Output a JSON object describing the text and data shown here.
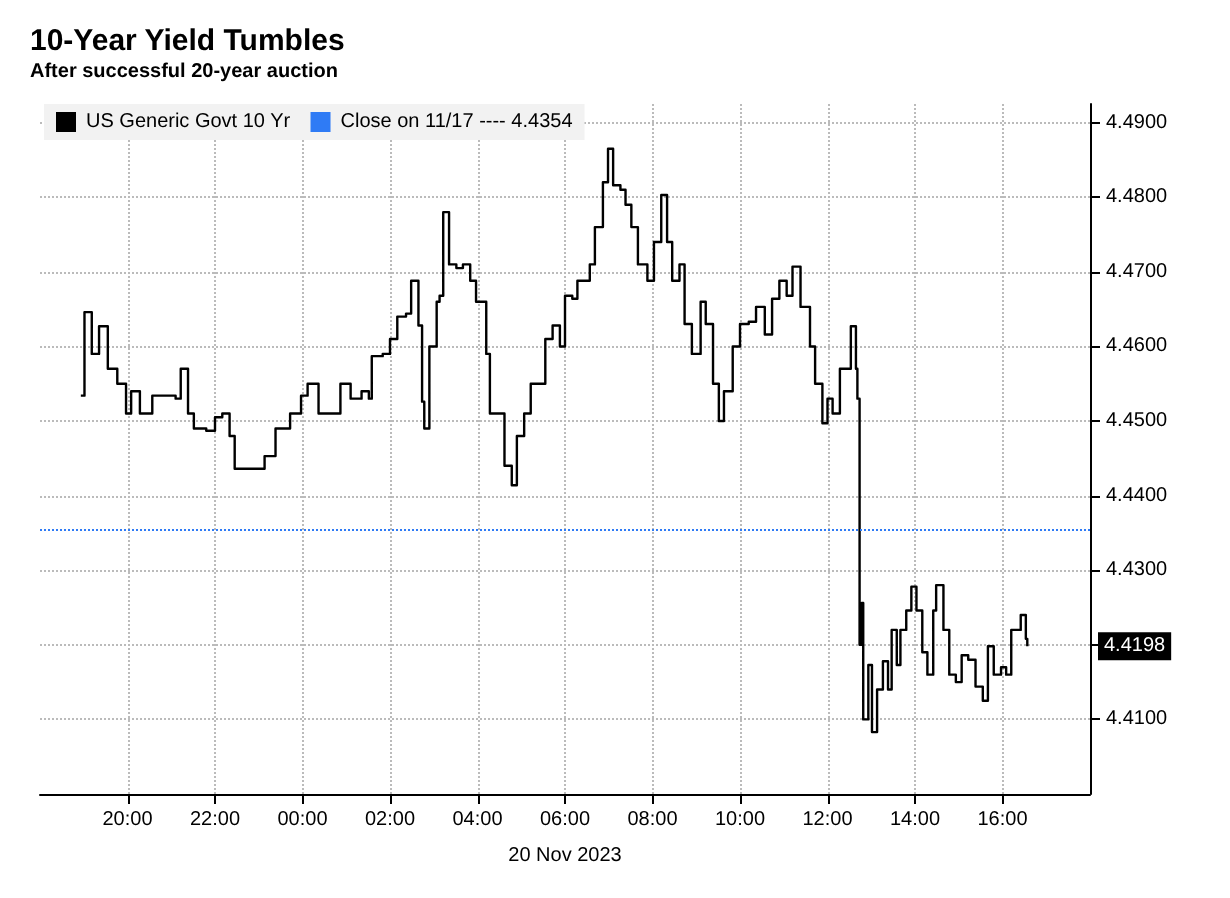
{
  "chart_data": {
    "type": "step",
    "title": "10-Year Yield Tumbles",
    "subtitle": "After successful 20-year auction",
    "xlabel": "20 Nov 2023",
    "x": [
      "2023-11-19T18:56",
      "2023-11-19T19:01",
      "2023-11-19T19:11",
      "2023-11-19T19:21",
      "2023-11-19T19:33",
      "2023-11-19T19:46",
      "2023-11-19T19:58",
      "2023-11-19T20:05",
      "2023-11-19T20:17",
      "2023-11-19T20:34",
      "2023-11-19T21:06",
      "2023-11-19T21:13",
      "2023-11-19T21:23",
      "2023-11-19T21:31",
      "2023-11-19T21:48",
      "2023-11-19T22:00",
      "2023-11-19T22:10",
      "2023-11-19T22:20",
      "2023-11-19T22:27",
      "2023-11-19T22:49",
      "2023-11-19T23:08",
      "2023-11-19T23:23",
      "2023-11-19T23:43",
      "2023-11-19T23:58",
      "2023-11-20T00:07",
      "2023-11-20T00:22",
      "2023-11-20T00:47",
      "2023-11-20T00:52",
      "2023-11-20T01:06",
      "2023-11-20T01:21",
      "2023-11-20T01:31",
      "2023-11-20T01:35",
      "2023-11-20T01:50",
      "2023-11-20T02:00",
      "2023-11-20T02:10",
      "2023-11-20T02:22",
      "2023-11-20T02:29",
      "2023-11-20T02:39",
      "2023-11-20T02:44",
      "2023-11-20T02:47",
      "2023-11-20T02:54",
      "2023-11-20T03:04",
      "2023-11-20T03:08",
      "2023-11-20T03:13",
      "2023-11-20T03:21",
      "2023-11-20T03:31",
      "2023-11-20T03:40",
      "2023-11-20T03:50",
      "2023-11-20T03:58",
      "2023-11-20T04:12",
      "2023-11-20T04:17",
      "2023-11-20T04:27",
      "2023-11-20T04:37",
      "2023-11-20T04:47",
      "2023-11-20T04:54",
      "2023-11-20T05:04",
      "2023-11-20T05:13",
      "2023-11-20T05:23",
      "2023-11-20T05:33",
      "2023-11-20T05:43",
      "2023-11-20T05:53",
      "2023-11-20T06:00",
      "2023-11-20T06:10",
      "2023-11-20T06:17",
      "2023-11-20T06:27",
      "2023-11-20T06:34",
      "2023-11-20T06:41",
      "2023-11-20T06:52",
      "2023-11-20T06:59",
      "2023-11-20T07:06",
      "2023-11-20T07:16",
      "2023-11-20T07:23",
      "2023-11-20T07:31",
      "2023-11-20T07:40",
      "2023-11-20T07:53",
      "2023-11-20T08:02",
      "2023-11-20T08:12",
      "2023-11-20T08:20",
      "2023-11-20T08:27",
      "2023-11-20T08:37",
      "2023-11-20T08:44",
      "2023-11-20T08:54",
      "2023-11-20T09:06",
      "2023-11-20T09:13",
      "2023-11-20T09:23",
      "2023-11-20T09:31",
      "2023-11-20T09:38",
      "2023-11-20T09:50",
      "2023-11-20T10:00",
      "2023-11-20T10:12",
      "2023-11-20T10:22",
      "2023-11-20T10:34",
      "2023-11-20T10:44",
      "2023-11-20T10:54",
      "2023-11-20T11:04",
      "2023-11-20T11:12",
      "2023-11-20T11:23",
      "2023-11-20T11:36",
      "2023-11-20T11:43",
      "2023-11-20T11:53",
      "2023-11-20T12:00",
      "2023-11-20T12:07",
      "2023-11-20T12:17",
      "2023-11-20T12:27",
      "2023-11-20T12:32",
      "2023-11-20T12:39",
      "2023-11-20T12:41",
      "2023-11-20T12:44",
      "2023-11-20T12:47",
      "2023-11-20T12:49",
      "2023-11-20T12:56",
      "2023-11-20T13:01",
      "2023-11-20T13:08",
      "2023-11-20T13:16",
      "2023-11-20T13:23",
      "2023-11-20T13:28",
      "2023-11-20T13:35",
      "2023-11-20T13:40",
      "2023-11-20T13:48",
      "2023-11-20T13:55",
      "2023-11-20T14:02",
      "2023-11-20T14:10",
      "2023-11-20T14:17",
      "2023-11-20T14:25",
      "2023-11-20T14:29",
      "2023-11-20T14:39",
      "2023-11-20T14:47",
      "2023-11-20T14:56",
      "2023-11-20T15:04",
      "2023-11-20T15:13",
      "2023-11-20T15:23",
      "2023-11-20T15:33",
      "2023-11-20T15:40",
      "2023-11-20T15:48",
      "2023-11-20T15:58",
      "2023-11-20T16:05",
      "2023-11-20T16:12",
      "2023-11-20T16:25",
      "2023-11-20T16:32",
      "2023-11-20T16:34"
    ],
    "series": [
      {
        "name": "US Generic Govt 10 Yr",
        "color": "#000000",
        "values": [
          4.4534,
          4.4646,
          4.459,
          4.4627,
          4.457,
          4.455,
          4.451,
          4.454,
          4.451,
          4.4534,
          4.453,
          4.457,
          4.451,
          4.449,
          4.4487,
          4.4505,
          4.451,
          4.448,
          4.4436,
          4.4436,
          4.4453,
          4.449,
          4.451,
          4.4534,
          4.455,
          4.451,
          4.451,
          4.455,
          4.453,
          4.454,
          4.453,
          4.4587,
          4.459,
          4.461,
          4.464,
          4.4644,
          4.4688,
          4.4628,
          4.4526,
          4.449,
          4.46,
          4.466,
          4.4668,
          4.478,
          4.471,
          4.4705,
          4.471,
          4.4688,
          4.466,
          4.459,
          4.451,
          4.451,
          4.444,
          4.4414,
          4.448,
          4.451,
          4.455,
          4.455,
          4.461,
          4.4628,
          4.46,
          4.4668,
          4.4664,
          4.4688,
          4.4688,
          4.471,
          4.476,
          4.482,
          4.4865,
          4.4816,
          4.481,
          4.479,
          4.476,
          4.471,
          4.4688,
          4.474,
          4.4803,
          4.474,
          4.4688,
          4.471,
          4.463,
          4.459,
          4.466,
          4.463,
          4.455,
          4.45,
          4.454,
          4.46,
          4.463,
          4.4633,
          4.4653,
          4.4616,
          4.4664,
          4.4688,
          4.4668,
          4.4707,
          4.4653,
          4.46,
          4.455,
          4.4497,
          4.453,
          4.451,
          4.457,
          4.457,
          4.4627,
          4.457,
          4.453,
          4.42,
          4.4256,
          4.41,
          4.4173,
          4.4083,
          4.414,
          4.4178,
          4.414,
          4.422,
          4.4173,
          4.422,
          4.4246,
          4.4278,
          4.4246,
          4.419,
          4.416,
          4.4246,
          4.428,
          4.422,
          4.416,
          4.415,
          4.4186,
          4.418,
          4.4144,
          4.4125,
          4.4198,
          4.416,
          4.417,
          4.416,
          4.422,
          4.424,
          4.4208,
          4.4198
        ]
      }
    ],
    "ref_lines": [
      {
        "axis": "y",
        "value": 4.4354,
        "label": "Close on 11/17 ---- 4.4354",
        "color": "#2f7bf5",
        "line_style": "dotted"
      }
    ],
    "annotations": [
      "4.4198"
    ],
    "xlim": [
      "2023-11-19T18:00",
      "2023-11-20T18:00"
    ],
    "xticks": [
      {
        "value": "2023-11-19T20:00",
        "label": "20:00"
      },
      {
        "value": "2023-11-19T22:00",
        "label": "22:00"
      },
      {
        "value": "2023-11-20T00:00",
        "label": "00:00"
      },
      {
        "value": "2023-11-20T02:00",
        "label": "02:00"
      },
      {
        "value": "2023-11-20T04:00",
        "label": "04:00"
      },
      {
        "value": "2023-11-20T06:00",
        "label": "06:00"
      },
      {
        "value": "2023-11-20T08:00",
        "label": "08:00"
      },
      {
        "value": "2023-11-20T10:00",
        "label": "10:00"
      },
      {
        "value": "2023-11-20T12:00",
        "label": "12:00"
      },
      {
        "value": "2023-11-20T14:00",
        "label": "14:00"
      },
      {
        "value": "2023-11-20T16:00",
        "label": "16:00"
      }
    ],
    "ylim": [
      4.4,
      4.4925
    ],
    "yticks": [
      {
        "value": 4.41,
        "label": "4.4100"
      },
      {
        "value": 4.42,
        "label": null
      },
      {
        "value": 4.43,
        "label": "4.4300"
      },
      {
        "value": 4.44,
        "label": "4.4400"
      },
      {
        "value": 4.45,
        "label": "4.4500"
      },
      {
        "value": 4.46,
        "label": "4.4600"
      },
      {
        "value": 4.47,
        "label": "4.4700"
      },
      {
        "value": 4.48,
        "label": "4.4800"
      },
      {
        "value": 4.49,
        "label": "4.4900"
      }
    ],
    "grid": true,
    "legend": "top left",
    "line_style": "solid"
  }
}
